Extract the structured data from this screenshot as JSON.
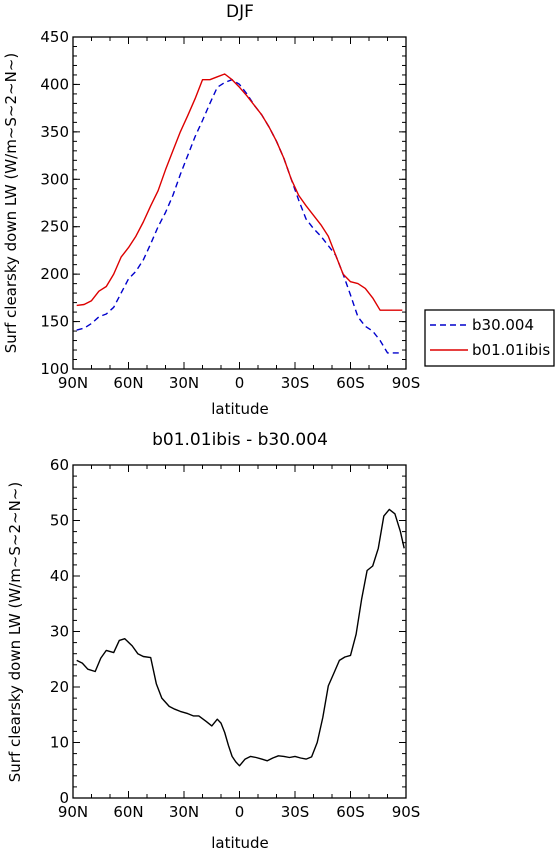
{
  "chart_data": [
    {
      "type": "line",
      "title": "DJF",
      "xlabel": "latitude",
      "ylabel": "Surf clearsky down LW (W/m~S~2~N~)",
      "xlim": [
        90,
        -90
      ],
      "ylim": [
        100,
        450
      ],
      "xticks": [
        90,
        60,
        30,
        0,
        -30,
        -60,
        -90
      ],
      "xtick_labels": [
        "90N",
        "60N",
        "30N",
        "0",
        "30S",
        "60S",
        "90S"
      ],
      "yticks": [
        100,
        150,
        200,
        250,
        300,
        350,
        400,
        450
      ],
      "ytick_labels": [
        "100",
        "150",
        "200",
        "250",
        "300",
        "350",
        "400",
        "450"
      ],
      "grid": false,
      "legend_position": "outside-right",
      "series": [
        {
          "name": "b30.004",
          "color": "#0000cc",
          "dash": "dashed",
          "x": [
            88,
            84,
            80,
            76,
            72,
            68,
            64,
            60,
            56,
            52,
            48,
            44,
            40,
            36,
            32,
            28,
            24,
            20,
            16,
            12,
            8,
            4,
            0,
            -4,
            -8,
            -12,
            -16,
            -20,
            -24,
            -28,
            -32,
            -36,
            -40,
            -44,
            -48,
            -52,
            -56,
            -60,
            -64,
            -68,
            -72,
            -76,
            -80,
            -84,
            -88
          ],
          "y": [
            141,
            143,
            148,
            155,
            158,
            165,
            180,
            195,
            203,
            215,
            232,
            250,
            265,
            283,
            305,
            325,
            345,
            362,
            380,
            397,
            402,
            405,
            400,
            390,
            378,
            368,
            355,
            340,
            322,
            300,
            278,
            258,
            248,
            240,
            230,
            220,
            200,
            178,
            155,
            145,
            140,
            130,
            117,
            117,
            117
          ]
        },
        {
          "name": "b01.01ibis",
          "color": "#dd0000",
          "dash": "solid",
          "x": [
            88,
            84,
            80,
            76,
            72,
            68,
            64,
            60,
            56,
            52,
            48,
            44,
            40,
            36,
            32,
            28,
            24,
            20,
            16,
            12,
            8,
            4,
            0,
            -4,
            -8,
            -12,
            -16,
            -20,
            -24,
            -28,
            -32,
            -36,
            -40,
            -44,
            -48,
            -52,
            -56,
            -60,
            -64,
            -68,
            -72,
            -76,
            -80,
            -84,
            -88
          ],
          "y": [
            167,
            168,
            172,
            182,
            187,
            200,
            218,
            228,
            240,
            255,
            272,
            288,
            310,
            330,
            350,
            367,
            385,
            405,
            405,
            408,
            411,
            405,
            397,
            388,
            378,
            368,
            355,
            340,
            322,
            300,
            283,
            272,
            262,
            252,
            240,
            220,
            200,
            192,
            190,
            185,
            175,
            162,
            162,
            162,
            162
          ]
        }
      ]
    },
    {
      "type": "line",
      "title": "b01.01ibis - b30.004",
      "xlabel": "latitude",
      "ylabel": "Surf clearsky down LW (W/m~S~2~N~)",
      "xlim": [
        90,
        -90
      ],
      "ylim": [
        0,
        60
      ],
      "xticks": [
        90,
        60,
        30,
        0,
        -30,
        -60,
        -90
      ],
      "xtick_labels": [
        "90N",
        "60N",
        "30N",
        "0",
        "30S",
        "60S",
        "90S"
      ],
      "yticks": [
        0,
        10,
        20,
        30,
        40,
        50,
        60
      ],
      "ytick_labels": [
        "0",
        "10",
        "20",
        "30",
        "40",
        "50",
        "60"
      ],
      "grid": false,
      "series": [
        {
          "color": "#000000",
          "dash": "solid",
          "x": [
            88,
            85,
            82,
            78,
            75,
            72,
            68,
            65,
            62,
            58,
            55,
            52,
            48,
            45,
            42,
            38,
            35,
            32,
            28,
            25,
            22,
            18,
            15,
            12,
            10,
            8,
            6,
            4,
            2,
            0,
            -3,
            -6,
            -9,
            -12,
            -15,
            -18,
            -21,
            -24,
            -27,
            -30,
            -33,
            -36,
            -39,
            -42,
            -45,
            -48,
            -51,
            -54,
            -57,
            -60,
            -63,
            -66,
            -69,
            -72,
            -75,
            -78,
            -81,
            -84,
            -87,
            -89
          ],
          "y": [
            24.8,
            24.3,
            23.2,
            22.8,
            25.2,
            26.6,
            26.2,
            28.4,
            28.7,
            27.4,
            26.0,
            25.5,
            25.3,
            20.6,
            18.0,
            16.5,
            16.0,
            15.6,
            15.2,
            14.8,
            14.8,
            13.8,
            13.0,
            14.2,
            13.5,
            11.8,
            9.5,
            7.5,
            6.5,
            5.8,
            7.0,
            7.5,
            7.3,
            7.0,
            6.7,
            7.2,
            7.6,
            7.5,
            7.3,
            7.5,
            7.2,
            7.0,
            7.4,
            10.0,
            14.5,
            20.2,
            22.5,
            24.8,
            25.4,
            25.7,
            29.5,
            35.8,
            41.0,
            41.8,
            45.0,
            50.8,
            52.0,
            51.2,
            48.0,
            45.0
          ]
        }
      ]
    }
  ]
}
